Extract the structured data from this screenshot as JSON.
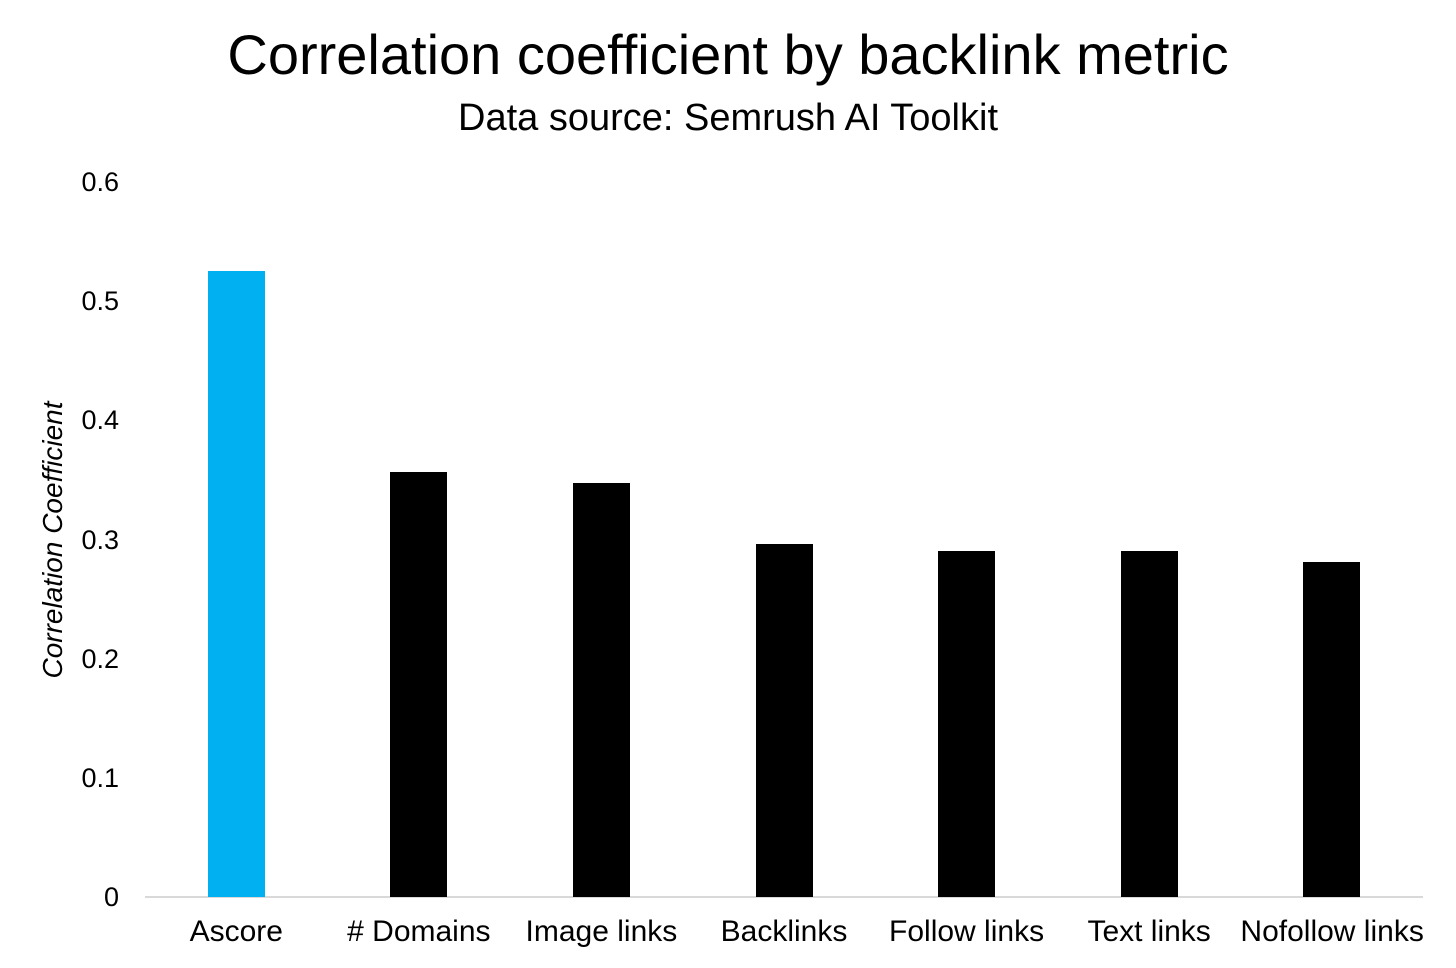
{
  "header": {
    "title": "Correlation coefficient by backlink metric",
    "subtitle": "Data source: Semrush AI Toolkit"
  },
  "chart_data": {
    "type": "bar",
    "title": "Correlation coefficient by backlink metric",
    "subtitle": "Data source: Semrush AI Toolkit",
    "categories": [
      "Ascore",
      "# Domains",
      "Image links",
      "Backlinks",
      "Follow links",
      "Text links",
      "Nofollow links"
    ],
    "values": [
      0.525,
      0.357,
      0.347,
      0.296,
      0.29,
      0.29,
      0.281
    ],
    "bar_colors": [
      "#00b0f0",
      "#000000",
      "#000000",
      "#000000",
      "#000000",
      "#000000",
      "#000000"
    ],
    "highlight_color": "#00b0f0",
    "default_color": "#000000",
    "xlabel": "",
    "ylabel": "Correlation Coefficient",
    "ylim": [
      0,
      0.6
    ],
    "yticks": [
      0,
      0.1,
      0.2,
      0.3,
      0.4,
      0.5,
      0.6
    ],
    "ytick_labels": [
      "0",
      "0.1",
      "0.2",
      "0.3",
      "0.4",
      "0.5",
      "0.6"
    ],
    "grid": false,
    "legend": false,
    "axis_line_color": "#d9d9d9",
    "text_color": "#000000",
    "background_color": "#ffffff"
  }
}
